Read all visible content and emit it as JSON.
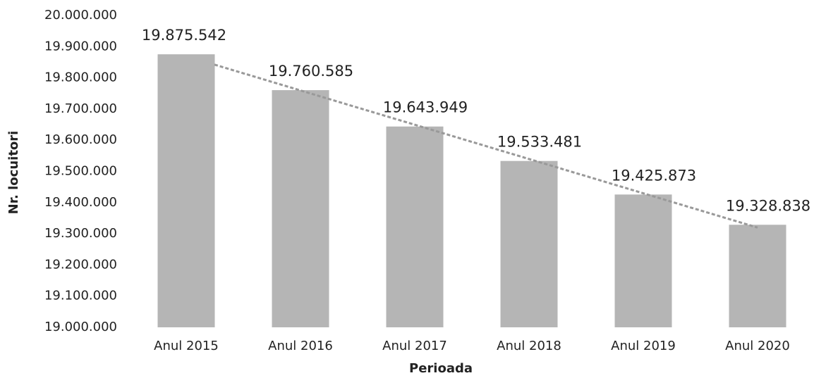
{
  "chart_data": {
    "type": "bar",
    "categories": [
      "Anul 2015",
      "Anul 2016",
      "Anul 2017",
      "Anul 2018",
      "Anul 2019",
      "Anul 2020"
    ],
    "values": [
      19875542,
      19760585,
      19643949,
      19533481,
      19425873,
      19328838
    ],
    "value_labels": [
      "19.875.542",
      "19.760.585",
      "19.643.949",
      "19.533.481",
      "19.425.873",
      "19.328.838"
    ],
    "color": "#b5b5b5",
    "xlabel": "Perioada",
    "ylabel": "Nr. locuitori",
    "ylim": [
      19000000,
      20000000
    ],
    "yticks": [
      {
        "value": 19000000,
        "label": "19.000.000"
      },
      {
        "value": 19100000,
        "label": "19.100.000"
      },
      {
        "value": 19200000,
        "label": "19.200.000"
      },
      {
        "value": 19300000,
        "label": "19.300.000"
      },
      {
        "value": 19400000,
        "label": "19.400.000"
      },
      {
        "value": 19500000,
        "label": "19.500.000"
      },
      {
        "value": 19600000,
        "label": "19.600.000"
      },
      {
        "value": 19700000,
        "label": "19.700.000"
      },
      {
        "value": 19800000,
        "label": "19.800.000"
      },
      {
        "value": 19900000,
        "label": "19.900.000"
      },
      {
        "value": 20000000,
        "label": "20.000.000"
      }
    ],
    "trendline": true
  }
}
